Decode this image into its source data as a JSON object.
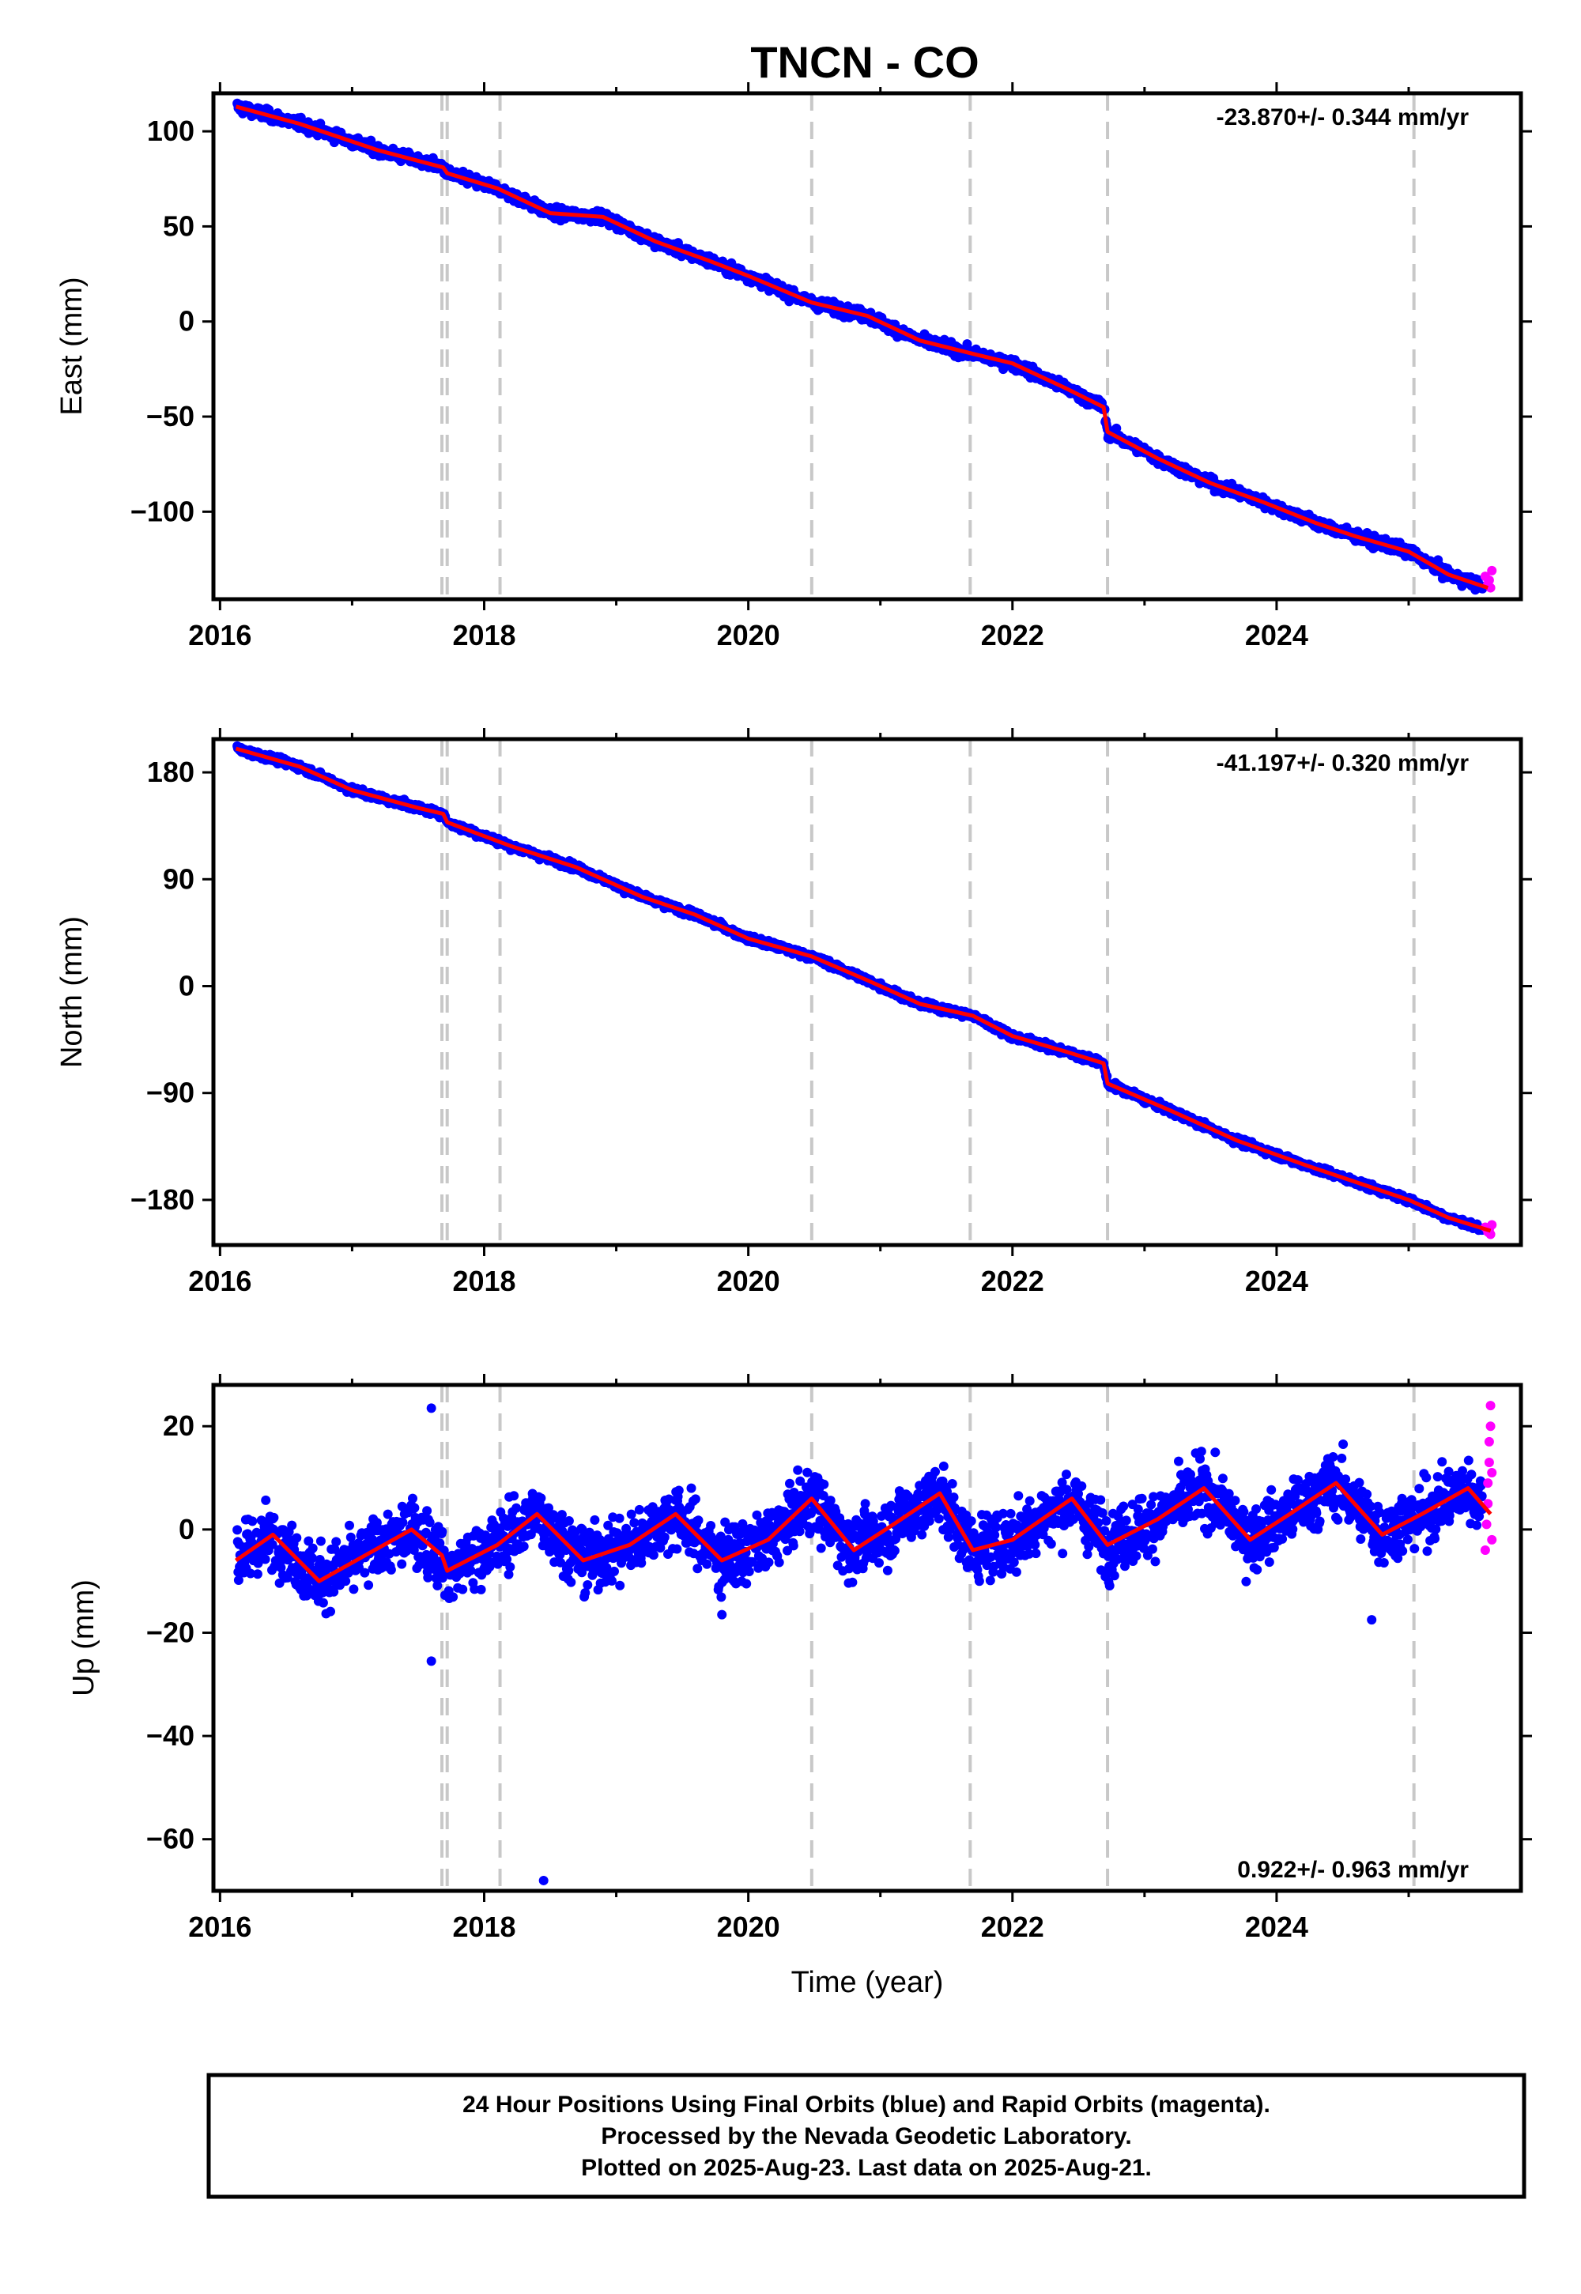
{
  "title": "TNCN - CO",
  "xlabel": "Time (year)",
  "colors": {
    "final": "#0000ff",
    "rapid": "#ff00ff",
    "model": "#ff0000",
    "event_line": "#c8c8c8"
  },
  "footer": {
    "line1": "24 Hour Positions Using Final Orbits (blue) and Rapid Orbits (magenta).",
    "line2": "Processed by the Nevada Geodetic Laboratory.",
    "line3": "Plotted on 2025-Aug-23. Last data on 2025-Aug-21."
  },
  "chart_data": [
    {
      "type": "scatter",
      "component": "east",
      "ylabel": "East (mm)",
      "rate_label": "-23.870+/- 0.344 mm/yr",
      "xlim": [
        2015.95,
        2025.85
      ],
      "ylim": [
        -146,
        120
      ],
      "xticks": [
        2016,
        2018,
        2020,
        2022,
        2024
      ],
      "xtick_labels": [
        "2016",
        "2018",
        "2020",
        "2022",
        "2024"
      ],
      "yticks": [
        100,
        50,
        0,
        -50,
        -100
      ],
      "ytick_labels": [
        "100",
        "50",
        "0",
        "−50",
        "−100"
      ],
      "event_lines": [
        2017.68,
        2017.72,
        2018.12,
        2020.48,
        2021.68,
        2022.72,
        2025.04
      ],
      "series": [
        {
          "role": "model",
          "x": [
            2016.12,
            2016.6,
            2017.2,
            2017.69,
            2017.72,
            2018.1,
            2018.5,
            2018.9,
            2019.3,
            2019.7,
            2020.0,
            2020.48,
            2020.9,
            2021.3,
            2021.7,
            2022.0,
            2022.4,
            2022.69,
            2022.72,
            2023.1,
            2023.5,
            2023.9,
            2024.3,
            2024.6,
            2025.0,
            2025.3,
            2025.6
          ],
          "y": [
            113,
            104,
            90,
            81,
            78,
            70,
            57,
            55,
            42,
            32,
            24,
            10,
            3,
            -10,
            -17,
            -22,
            -35,
            -45,
            -58,
            -72,
            -85,
            -95,
            -106,
            -113,
            -121,
            -133,
            -140
          ]
        },
        {
          "role": "rapid",
          "x": [
            2025.58,
            2025.6,
            2025.61,
            2025.62,
            2025.63
          ],
          "y": [
            -134,
            -138,
            -136,
            -140,
            -131
          ]
        }
      ]
    },
    {
      "type": "scatter",
      "component": "north",
      "ylabel": "North (mm)",
      "rate_label": "-41.197+/- 0.320 mm/yr",
      "xlim": [
        2015.95,
        2025.85
      ],
      "ylim": [
        -218,
        208
      ],
      "xticks": [
        2016,
        2018,
        2020,
        2022,
        2024
      ],
      "xtick_labels": [
        "2016",
        "2018",
        "2020",
        "2022",
        "2024"
      ],
      "yticks": [
        180,
        90,
        0,
        -90,
        -180
      ],
      "ytick_labels": [
        "180",
        "90",
        "0",
        "−90",
        "−180"
      ],
      "event_lines": [
        2017.68,
        2017.72,
        2018.12,
        2020.48,
        2021.68,
        2022.72,
        2025.04
      ],
      "series": [
        {
          "role": "model",
          "x": [
            2016.12,
            2016.6,
            2017.0,
            2017.5,
            2017.69,
            2017.72,
            2018.2,
            2018.7,
            2019.2,
            2019.6,
            2020.0,
            2020.48,
            2020.9,
            2021.3,
            2021.7,
            2022.0,
            2022.4,
            2022.69,
            2022.72,
            2023.2,
            2023.7,
            2024.2,
            2024.6,
            2025.0,
            2025.3,
            2025.62
          ],
          "y": [
            200,
            185,
            165,
            150,
            145,
            138,
            118,
            100,
            75,
            60,
            40,
            25,
            5,
            -15,
            -25,
            -42,
            -55,
            -65,
            -82,
            -105,
            -130,
            -150,
            -165,
            -180,
            -195,
            -206
          ]
        },
        {
          "role": "rapid",
          "x": [
            2025.58,
            2025.6,
            2025.61,
            2025.62,
            2025.63
          ],
          "y": [
            -203,
            -207,
            -205,
            -209,
            -201
          ]
        }
      ]
    },
    {
      "type": "scatter",
      "component": "up",
      "ylabel": "Up (mm)",
      "rate_label": "0.922+/- 0.963 mm/yr",
      "xlim": [
        2015.95,
        2025.85
      ],
      "ylim": [
        -70,
        28
      ],
      "xticks": [
        2016,
        2018,
        2020,
        2022,
        2024
      ],
      "xtick_labels": [
        "2016",
        "2018",
        "2020",
        "2022",
        "2024"
      ],
      "yticks": [
        20,
        0,
        -20,
        -40,
        -60
      ],
      "ytick_labels": [
        "20",
        "0",
        "−20",
        "−40",
        "−60"
      ],
      "event_lines": [
        2017.68,
        2017.72,
        2018.12,
        2020.48,
        2021.68,
        2022.72,
        2025.04
      ],
      "outliers": [
        {
          "x": 2017.6,
          "y": 23.5
        },
        {
          "x": 2017.6,
          "y": -25.5
        },
        {
          "x": 2018.45,
          "y": -68
        },
        {
          "x": 2019.8,
          "y": -16.5
        },
        {
          "x": 2024.72,
          "y": -17.5
        }
      ],
      "series": [
        {
          "role": "model",
          "x": [
            2016.12,
            2016.4,
            2016.75,
            2017.1,
            2017.45,
            2017.68,
            2017.72,
            2018.1,
            2018.4,
            2018.75,
            2019.1,
            2019.45,
            2019.8,
            2020.15,
            2020.48,
            2020.8,
            2021.1,
            2021.45,
            2021.7,
            2022.0,
            2022.45,
            2022.72,
            2023.1,
            2023.45,
            2023.8,
            2024.1,
            2024.45,
            2024.8,
            2025.1,
            2025.45,
            2025.62
          ],
          "y": [
            -6,
            -1,
            -10,
            -5,
            0,
            -5,
            -8,
            -3,
            3,
            -6,
            -3,
            3,
            -6,
            -2,
            6,
            -4,
            1,
            7,
            -4,
            -2,
            6,
            -3,
            2,
            8,
            -2,
            3,
            9,
            -1,
            3,
            8,
            3
          ]
        },
        {
          "role": "rapid",
          "x": [
            2025.58,
            2025.59,
            2025.6,
            2025.6,
            2025.61,
            2025.61,
            2025.62,
            2025.62,
            2025.63,
            2025.63
          ],
          "y": [
            -4,
            1,
            5,
            9,
            13,
            17,
            20,
            24,
            11,
            -2
          ]
        }
      ]
    }
  ]
}
